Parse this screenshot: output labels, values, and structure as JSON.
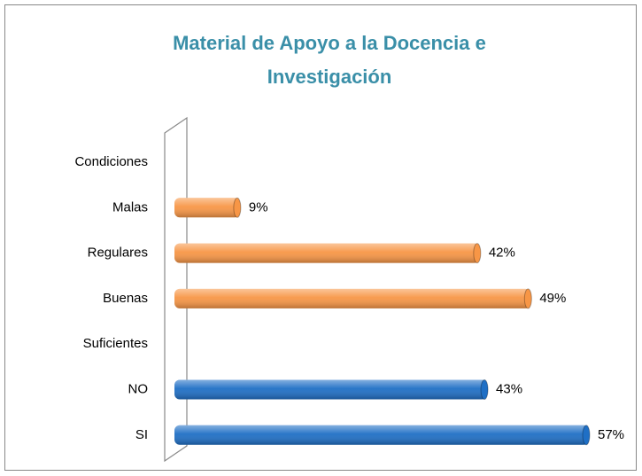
{
  "chart_data": {
    "type": "bar",
    "orientation": "horizontal",
    "title": "Material de Apoyo a la Docencia   e Investigación",
    "categories": [
      "Condiciones",
      "Malas",
      "Regulares",
      "Buenas",
      "Suficientes",
      "NO",
      "SI"
    ],
    "values": [
      null,
      9,
      42,
      49,
      null,
      43,
      57
    ],
    "value_labels": [
      null,
      "9%",
      "42%",
      "49%",
      null,
      "43%",
      "57%"
    ],
    "colors": [
      null,
      "#f79646",
      "#f79646",
      "#f79646",
      null,
      "#1f6fc5",
      "#1f6fc5"
    ]
  }
}
